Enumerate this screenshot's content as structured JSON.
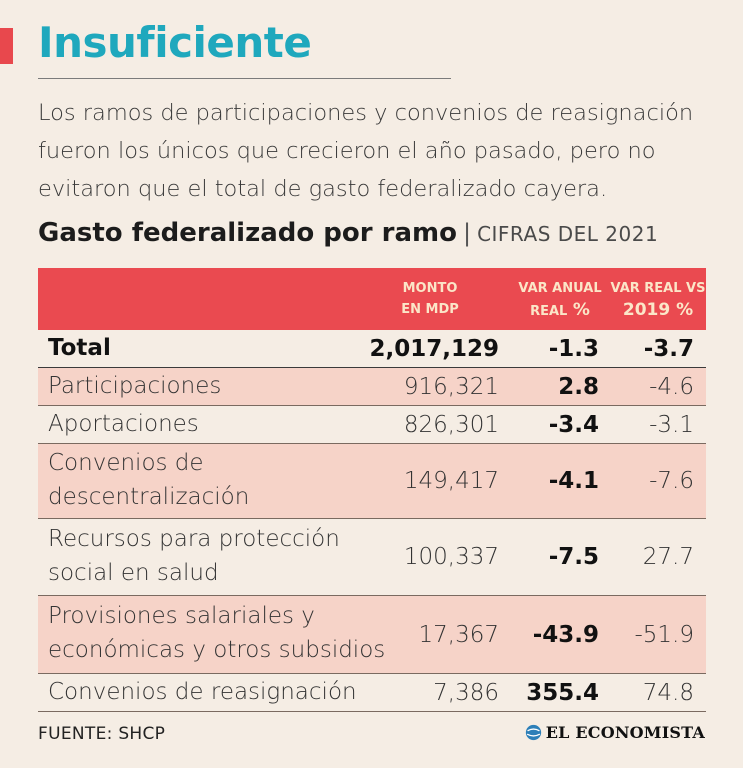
{
  "header": {
    "title": "Insuficiente",
    "intro": "Los ramos de participaciones y convenios de reasignación fueron los únicos que crecieron el año pasado, pero no evitaron que el total de gasto federalizado cayera."
  },
  "chart_data": {
    "type": "table",
    "title": "Gasto federalizado por ramo",
    "subtitle": "CIFRAS DEL 2021",
    "columns": [
      {
        "line1": "MONTO",
        "line2": "EN MDP"
      },
      {
        "line1": "VAR ANUAL",
        "line2_small": "REAL",
        "line2_big": "%"
      },
      {
        "line1": "VAR REAL VS",
        "line2_big": "2019 %"
      }
    ],
    "rows": [
      {
        "name": "Total",
        "monto": "2,017,129",
        "var_anual": "-1.3",
        "var_2019": "-3.7"
      },
      {
        "name": "Participaciones",
        "monto": "916,321",
        "var_anual": "2.8",
        "var_2019": "-4.6"
      },
      {
        "name": "Aportaciones",
        "monto": "826,301",
        "var_anual": "-3.4",
        "var_2019": "-3.1"
      },
      {
        "name_line1": "Convenios de",
        "name_line2": "descentralización",
        "monto": "149,417",
        "var_anual": "-4.1",
        "var_2019": "-7.6"
      },
      {
        "name_line1": "Recursos para protección",
        "name_line2": "social en salud",
        "monto": "100,337",
        "var_anual": "-7.5",
        "var_2019": "27.7"
      },
      {
        "name_line1": "Provisiones salariales y",
        "name_line2": "económicas y otros subsidios",
        "monto": "17,367",
        "var_anual": "-43.9",
        "var_2019": "-51.9"
      },
      {
        "name": "Convenios de reasignación",
        "monto": "7,386",
        "var_anual": "355.4",
        "var_2019": "74.8"
      }
    ]
  },
  "footer": {
    "source": "FUENTE: SHCP",
    "logo_text": "EL ECONOMISTA"
  },
  "colors": {
    "accent": "#e8484d",
    "title": "#1fa8bd",
    "header_bg": "#ea4a50",
    "header_text": "#fbe6c8",
    "row_shade": "#f6d3c8",
    "page_bg": "#f5ede4"
  }
}
